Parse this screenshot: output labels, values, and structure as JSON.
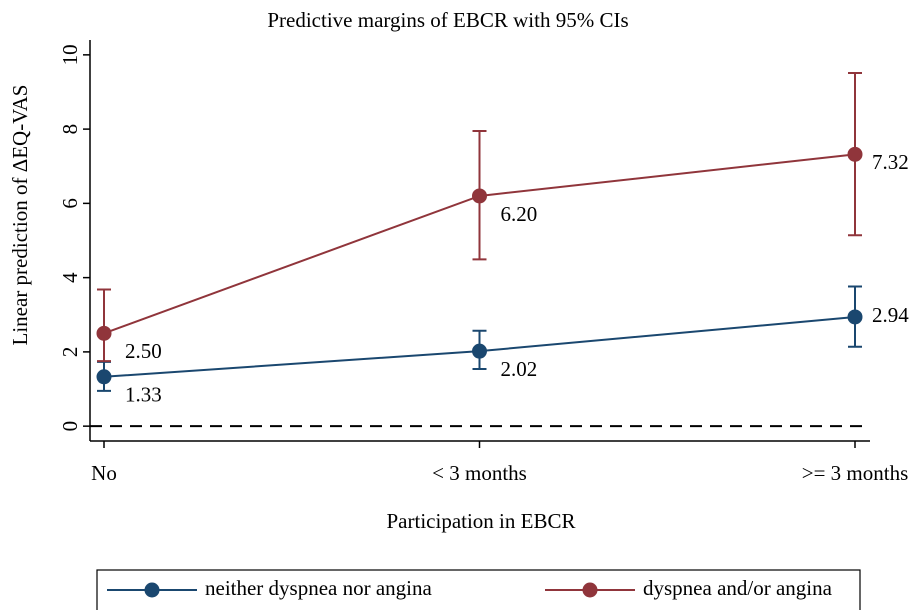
{
  "chart_data": {
    "type": "line",
    "title": "Predictive margins of EBCR with 95% CIs",
    "x_label": "Participation in EBCR",
    "y_label": "Linear prediction of ΔEQ-VAS",
    "categories": [
      "No",
      "< 3 months",
      ">= 3 months"
    ],
    "series": [
      {
        "name": "neither dyspnea nor angina",
        "color": "#1a476f",
        "values": [
          1.33,
          2.02,
          2.94
        ],
        "value_labels": [
          "1.33",
          "2.02",
          "2.94"
        ],
        "ci_lower": [
          0.95,
          1.54,
          2.14
        ],
        "ci_upper": [
          1.73,
          2.57,
          3.76
        ]
      },
      {
        "name": "dyspnea and/or angina",
        "color": "#90353b",
        "values": [
          2.5,
          6.2,
          7.32
        ],
        "value_labels": [
          "2.50",
          "6.20",
          "7.32"
        ],
        "ci_lower": [
          1.75,
          4.49,
          5.14
        ],
        "ci_upper": [
          3.68,
          7.95,
          9.51
        ]
      }
    ],
    "ylim": [
      -0.4,
      10.4
    ],
    "yticks": [
      0,
      2,
      4,
      6,
      8,
      10
    ],
    "reference_line": 0,
    "legend": "bottom"
  }
}
